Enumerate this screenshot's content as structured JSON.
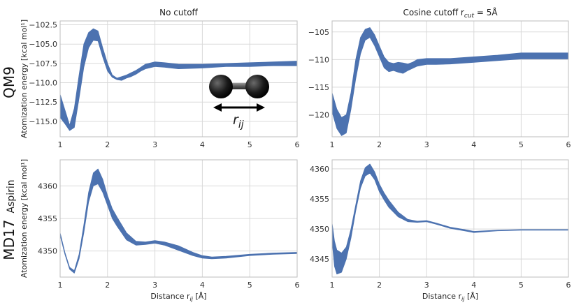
{
  "rows": {
    "qm9": "QM9",
    "md17": "MD17",
    "md17_sub": "Aspirin"
  },
  "inset": {
    "label": "r",
    "label_sub": "ij"
  },
  "colors": {
    "band": "#4c72b0",
    "atom": "#1a1a1a"
  },
  "chart_data": [
    {
      "id": "qm9-nocutoff",
      "type": "area",
      "title": "No cutoff",
      "xlabel": "",
      "ylabel": "Atomization energy [kcal mol¹]",
      "xlim": [
        1,
        6
      ],
      "ylim": [
        -117.0,
        -102.0
      ],
      "xticks": [
        1,
        2,
        3,
        4,
        5,
        6
      ],
      "yticks": [
        -115.0,
        -112.5,
        -110.0,
        -107.5,
        -105.0,
        -102.5
      ],
      "ytick_labels": [
        "−115.0",
        "−112.5",
        "−110.0",
        "−107.5",
        "−105.0",
        "−102.5"
      ],
      "grid": true,
      "x": [
        1.0,
        1.1,
        1.2,
        1.3,
        1.4,
        1.5,
        1.6,
        1.7,
        1.8,
        1.9,
        2.0,
        2.1,
        2.2,
        2.3,
        2.4,
        2.5,
        2.6,
        2.7,
        2.8,
        3.0,
        3.2,
        3.5,
        4.0,
        4.5,
        5.0,
        5.5,
        6.0
      ],
      "upper": [
        -111.5,
        -113.5,
        -115.5,
        -113.3,
        -109.0,
        -105.0,
        -103.5,
        -103.0,
        -103.3,
        -105.5,
        -107.5,
        -109.0,
        -109.4,
        -109.2,
        -109.0,
        -108.7,
        -108.4,
        -108.0,
        -107.6,
        -107.3,
        -107.4,
        -107.6,
        -107.6,
        -107.5,
        -107.4,
        -107.3,
        -107.2
      ],
      "lower": [
        -114.5,
        -115.3,
        -116.2,
        -115.8,
        -112.0,
        -108.0,
        -105.5,
        -104.5,
        -104.6,
        -106.7,
        -108.5,
        -109.3,
        -109.6,
        -109.7,
        -109.4,
        -109.2,
        -108.9,
        -108.5,
        -108.2,
        -107.9,
        -108.0,
        -108.2,
        -108.1,
        -107.9,
        -107.9,
        -107.8,
        -107.8
      ]
    },
    {
      "id": "qm9-cosine",
      "type": "area",
      "title": "Cosine cutoff r",
      "title_sub": "cut",
      "title_rest": " = 5Å",
      "xlabel": "",
      "ylabel": "",
      "xlim": [
        1,
        6
      ],
      "ylim": [
        -124.0,
        -103.0
      ],
      "xticks": [
        1,
        2,
        3,
        4,
        5,
        6
      ],
      "yticks": [
        -120,
        -115,
        -110,
        -105
      ],
      "ytick_labels": [
        "−120",
        "−115",
        "−110",
        "−105"
      ],
      "grid": true,
      "x": [
        1.0,
        1.1,
        1.2,
        1.3,
        1.4,
        1.5,
        1.6,
        1.7,
        1.8,
        1.9,
        2.0,
        2.1,
        2.2,
        2.3,
        2.4,
        2.5,
        2.6,
        2.7,
        2.8,
        3.0,
        3.2,
        3.5,
        4.0,
        4.5,
        5.0,
        5.5,
        6.0
      ],
      "upper": [
        -116.0,
        -119.0,
        -120.5,
        -120.0,
        -116.0,
        -110.0,
        -106.0,
        -104.5,
        -104.2,
        -105.5,
        -107.5,
        -109.5,
        -110.5,
        -110.7,
        -110.5,
        -110.6,
        -110.8,
        -110.5,
        -110.0,
        -109.8,
        -109.8,
        -109.8,
        -109.5,
        -109.2,
        -108.8,
        -108.8,
        -108.8
      ],
      "lower": [
        -119.5,
        -122.5,
        -123.8,
        -123.3,
        -119.0,
        -113.5,
        -109.0,
        -106.5,
        -106.0,
        -107.5,
        -109.5,
        -111.5,
        -112.2,
        -112.0,
        -112.3,
        -112.5,
        -112.0,
        -111.6,
        -111.2,
        -110.9,
        -110.9,
        -110.8,
        -110.5,
        -110.2,
        -109.9,
        -109.9,
        -109.9
      ]
    },
    {
      "id": "md17-nocutoff",
      "type": "area",
      "title": "",
      "xlabel": "Distance r",
      "xlabel_sub": "ij",
      "xlabel_rest": " [Å]",
      "ylabel": "Atomization energy [kcal mol¹]",
      "xlim": [
        1,
        6
      ],
      "ylim": [
        4346.0,
        4364.0
      ],
      "xticks": [
        1,
        2,
        3,
        4,
        5,
        6
      ],
      "yticks": [
        4350,
        4355,
        4360
      ],
      "ytick_labels": [
        "4350",
        "4355",
        "4360"
      ],
      "grid": true,
      "x": [
        1.0,
        1.1,
        1.2,
        1.3,
        1.4,
        1.5,
        1.6,
        1.7,
        1.8,
        1.9,
        2.0,
        2.1,
        2.2,
        2.4,
        2.6,
        2.8,
        3.0,
        3.2,
        3.5,
        3.8,
        4.0,
        4.2,
        4.5,
        5.0,
        5.5,
        6.0
      ],
      "upper": [
        4352.8,
        4349.8,
        4347.5,
        4347.0,
        4349.5,
        4354.0,
        4359.0,
        4362.0,
        4362.6,
        4361.0,
        4358.5,
        4356.5,
        4355.2,
        4352.8,
        4351.5,
        4351.4,
        4351.6,
        4351.4,
        4350.8,
        4349.8,
        4349.3,
        4349.1,
        4349.2,
        4349.5,
        4349.7,
        4349.8
      ],
      "lower": [
        4352.4,
        4349.5,
        4347.2,
        4346.6,
        4348.8,
        4352.8,
        4357.5,
        4360.0,
        4360.3,
        4359.0,
        4357.0,
        4355.0,
        4353.8,
        4351.7,
        4350.9,
        4351.0,
        4351.2,
        4350.9,
        4350.1,
        4349.3,
        4348.9,
        4348.8,
        4348.9,
        4349.3,
        4349.5,
        4349.6
      ]
    },
    {
      "id": "md17-cosine",
      "type": "area",
      "title": "",
      "xlabel": "Distance r",
      "xlabel_sub": "ij",
      "xlabel_rest": " [Å]",
      "ylabel": "",
      "xlim": [
        1,
        6
      ],
      "ylim": [
        4342.0,
        4361.5
      ],
      "xticks": [
        1,
        2,
        3,
        4,
        5,
        6
      ],
      "yticks": [
        4345,
        4350,
        4355,
        4360
      ],
      "ytick_labels": [
        "4345",
        "4350",
        "4355",
        "4360"
      ],
      "grid": true,
      "x": [
        1.0,
        1.05,
        1.1,
        1.2,
        1.3,
        1.4,
        1.5,
        1.6,
        1.7,
        1.8,
        1.9,
        2.0,
        2.1,
        2.2,
        2.4,
        2.6,
        2.8,
        3.0,
        3.2,
        3.5,
        3.8,
        4.0,
        4.5,
        5.0,
        5.5,
        6.0
      ],
      "upper": [
        4351.0,
        4348.0,
        4346.5,
        4346.0,
        4347.0,
        4350.0,
        4354.0,
        4358.0,
        4360.2,
        4360.8,
        4359.5,
        4357.5,
        4356.0,
        4354.8,
        4352.8,
        4351.6,
        4351.3,
        4351.4,
        4351.0,
        4350.3,
        4349.9,
        4349.6,
        4349.8,
        4349.9,
        4349.9,
        4349.9
      ],
      "lower": [
        4348.0,
        4343.8,
        4342.5,
        4342.8,
        4345.0,
        4348.5,
        4353.0,
        4356.8,
        4358.8,
        4359.3,
        4358.2,
        4356.2,
        4354.8,
        4353.6,
        4352.0,
        4351.2,
        4351.1,
        4351.2,
        4350.8,
        4350.1,
        4349.7,
        4349.4,
        4349.7,
        4349.8,
        4349.8,
        4349.8
      ]
    }
  ]
}
